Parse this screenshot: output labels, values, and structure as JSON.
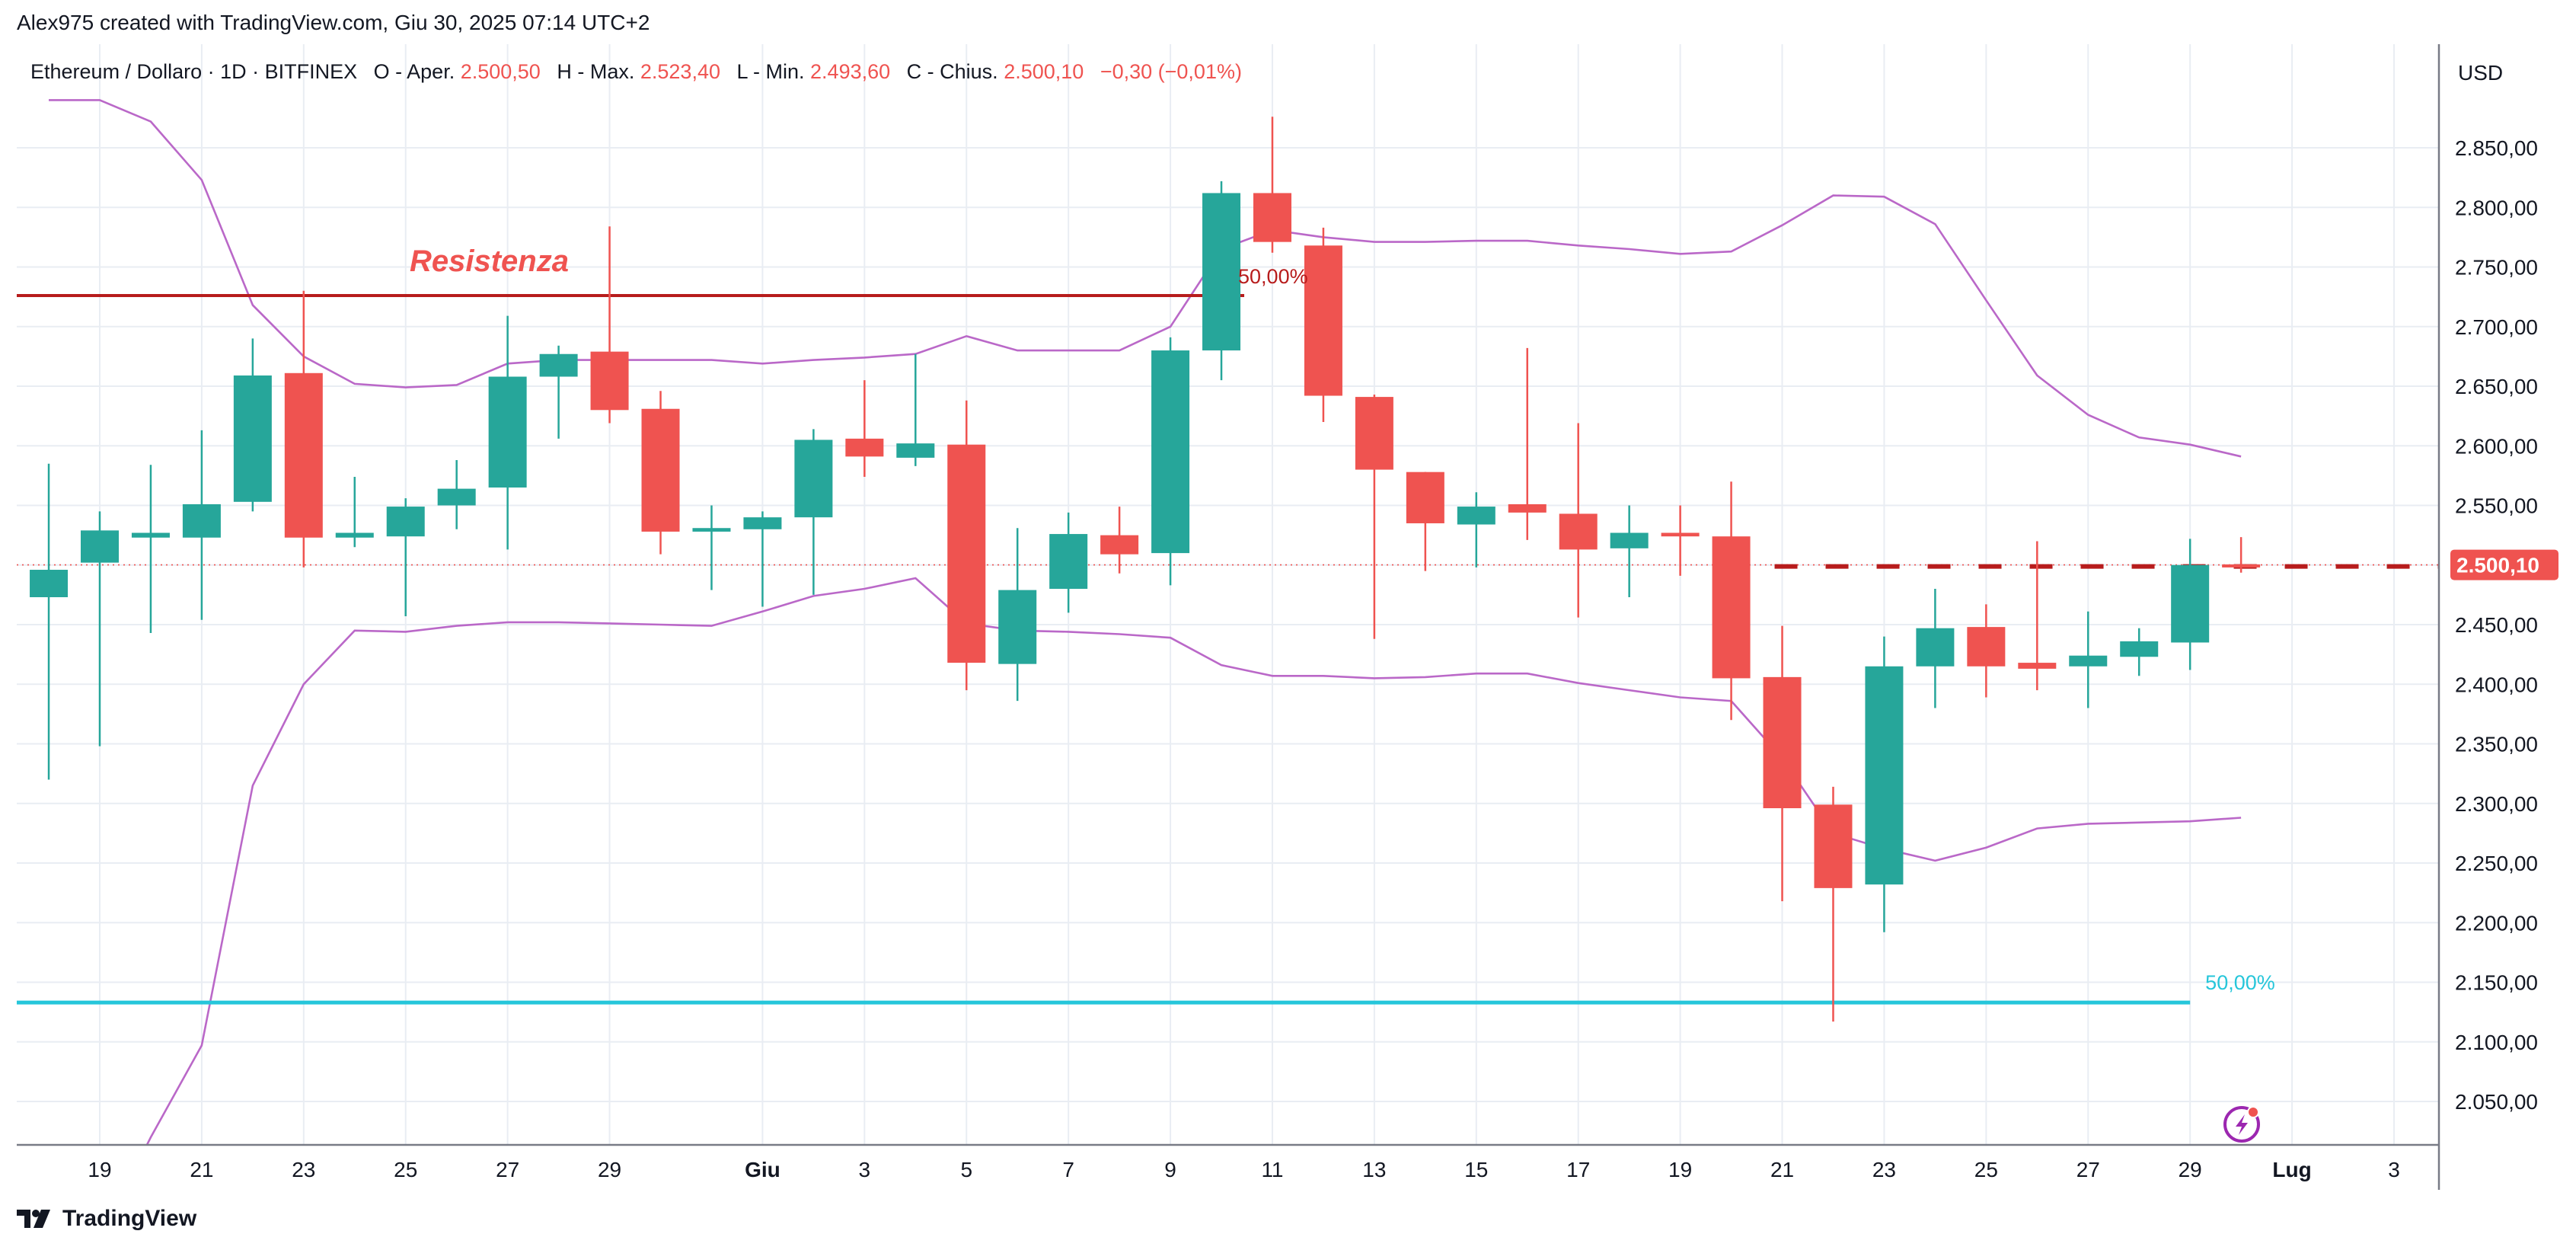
{
  "header": {
    "attribution": "Alex975 created with TradingView.com, Giu 30, 2025 07:14 UTC+2"
  },
  "legend": {
    "symbol": "Ethereum / Dollaro · 1D · BITFINEX",
    "open_label": "O - Aper.",
    "open_value": "2.500,50",
    "high_label": "H - Max.",
    "high_value": "2.523,40",
    "low_label": "L - Min.",
    "low_value": "2.493,60",
    "close_label": "C - Chius.",
    "close_value": "2.500,10",
    "change": "−0,30 (−0,01%)"
  },
  "footer": {
    "brand": "TradingView"
  },
  "colors": {
    "up": "#26a69a",
    "down": "#ef5350",
    "band": "#ba68c8",
    "resistance": "#b71c1c",
    "support": "#26c6da",
    "text": "#131722",
    "grid": "#e9edf3",
    "price_badge": "#ef5350"
  },
  "chart_data": {
    "type": "candlestick",
    "currency_label": "USD",
    "current_price_label": "2.500,10",
    "current_price": 2500.1,
    "y_ticks": [
      {
        "value": 2050,
        "label": "2.050,00"
      },
      {
        "value": 2100,
        "label": "2.100,00"
      },
      {
        "value": 2150,
        "label": "2.150,00"
      },
      {
        "value": 2200,
        "label": "2.200,00"
      },
      {
        "value": 2250,
        "label": "2.250,00"
      },
      {
        "value": 2300,
        "label": "2.300,00"
      },
      {
        "value": 2350,
        "label": "2.350,00"
      },
      {
        "value": 2400,
        "label": "2.400,00"
      },
      {
        "value": 2450,
        "label": "2.450,00"
      },
      {
        "value": 2500,
        "label": "2.500,00"
      },
      {
        "value": 2550,
        "label": "2.550,00"
      },
      {
        "value": 2600,
        "label": "2.600,00"
      },
      {
        "value": 2650,
        "label": "2.650,00"
      },
      {
        "value": 2700,
        "label": "2.700,00"
      },
      {
        "value": 2750,
        "label": "2.750,00"
      },
      {
        "value": 2800,
        "label": "2.800,00"
      },
      {
        "value": 2850,
        "label": "2.850,00"
      }
    ],
    "x_ticks": [
      {
        "date": "2025-05-19",
        "label": "19",
        "bold": false
      },
      {
        "date": "2025-05-21",
        "label": "21",
        "bold": false
      },
      {
        "date": "2025-05-23",
        "label": "23",
        "bold": false
      },
      {
        "date": "2025-05-25",
        "label": "25",
        "bold": false
      },
      {
        "date": "2025-05-27",
        "label": "27",
        "bold": false
      },
      {
        "date": "2025-05-29",
        "label": "29",
        "bold": false
      },
      {
        "date": "2025-06-01",
        "label": "Giu",
        "bold": true
      },
      {
        "date": "2025-06-03",
        "label": "3",
        "bold": false
      },
      {
        "date": "2025-06-05",
        "label": "5",
        "bold": false
      },
      {
        "date": "2025-06-07",
        "label": "7",
        "bold": false
      },
      {
        "date": "2025-06-09",
        "label": "9",
        "bold": false
      },
      {
        "date": "2025-06-11",
        "label": "11",
        "bold": false
      },
      {
        "date": "2025-06-13",
        "label": "13",
        "bold": false
      },
      {
        "date": "2025-06-15",
        "label": "15",
        "bold": false
      },
      {
        "date": "2025-06-17",
        "label": "17",
        "bold": false
      },
      {
        "date": "2025-06-19",
        "label": "19",
        "bold": false
      },
      {
        "date": "2025-06-21",
        "label": "21",
        "bold": false
      },
      {
        "date": "2025-06-23",
        "label": "23",
        "bold": false
      },
      {
        "date": "2025-06-25",
        "label": "25",
        "bold": false
      },
      {
        "date": "2025-06-27",
        "label": "27",
        "bold": false
      },
      {
        "date": "2025-06-29",
        "label": "29",
        "bold": false
      },
      {
        "date": "2025-07-01",
        "label": "Lug",
        "bold": true
      },
      {
        "date": "2025-07-03",
        "label": "3",
        "bold": false
      }
    ],
    "candles": [
      {
        "date": "2025-05-18",
        "open": 2473,
        "high": 2585,
        "low": 2320,
        "close": 2496
      },
      {
        "date": "2025-05-19",
        "open": 2502,
        "high": 2545,
        "low": 2348,
        "close": 2529
      },
      {
        "date": "2025-05-20",
        "open": 2523,
        "high": 2584,
        "low": 2443,
        "close": 2527
      },
      {
        "date": "2025-05-21",
        "open": 2523,
        "high": 2613,
        "low": 2454,
        "close": 2551
      },
      {
        "date": "2025-05-22",
        "open": 2553,
        "high": 2690,
        "low": 2545,
        "close": 2659
      },
      {
        "date": "2025-05-23",
        "open": 2661,
        "high": 2730,
        "low": 2498,
        "close": 2523
      },
      {
        "date": "2025-05-24",
        "open": 2523,
        "high": 2574,
        "low": 2515,
        "close": 2527
      },
      {
        "date": "2025-05-25",
        "open": 2524,
        "high": 2556,
        "low": 2457,
        "close": 2549
      },
      {
        "date": "2025-05-26",
        "open": 2550,
        "high": 2588,
        "low": 2530,
        "close": 2564
      },
      {
        "date": "2025-05-27",
        "open": 2565,
        "high": 2709,
        "low": 2513,
        "close": 2658
      },
      {
        "date": "2025-05-28",
        "open": 2658,
        "high": 2684,
        "low": 2606,
        "close": 2677
      },
      {
        "date": "2025-05-29",
        "open": 2679,
        "high": 2784,
        "low": 2619,
        "close": 2630
      },
      {
        "date": "2025-05-30",
        "open": 2631,
        "high": 2646,
        "low": 2509,
        "close": 2528
      },
      {
        "date": "2025-05-31",
        "open": 2528,
        "high": 2550,
        "low": 2479,
        "close": 2531
      },
      {
        "date": "2025-06-01",
        "open": 2530,
        "high": 2545,
        "low": 2465,
        "close": 2540
      },
      {
        "date": "2025-06-02",
        "open": 2540,
        "high": 2614,
        "low": 2475,
        "close": 2605
      },
      {
        "date": "2025-06-03",
        "open": 2606,
        "high": 2655,
        "low": 2574,
        "close": 2591
      },
      {
        "date": "2025-06-04",
        "open": 2590,
        "high": 2677,
        "low": 2583,
        "close": 2602
      },
      {
        "date": "2025-06-05",
        "open": 2601,
        "high": 2638,
        "low": 2395,
        "close": 2418
      },
      {
        "date": "2025-06-06",
        "open": 2417,
        "high": 2531,
        "low": 2386,
        "close": 2479
      },
      {
        "date": "2025-06-07",
        "open": 2480,
        "high": 2544,
        "low": 2460,
        "close": 2526
      },
      {
        "date": "2025-06-08",
        "open": 2525,
        "high": 2549,
        "low": 2493,
        "close": 2509
      },
      {
        "date": "2025-06-09",
        "open": 2510,
        "high": 2691,
        "low": 2483,
        "close": 2680
      },
      {
        "date": "2025-06-10",
        "open": 2680,
        "high": 2822,
        "low": 2655,
        "close": 2812
      },
      {
        "date": "2025-06-11",
        "open": 2812,
        "high": 2876,
        "low": 2762,
        "close": 2771
      },
      {
        "date": "2025-06-12",
        "open": 2768,
        "high": 2783,
        "low": 2620,
        "close": 2642
      },
      {
        "date": "2025-06-13",
        "open": 2641,
        "high": 2643,
        "low": 2438,
        "close": 2580
      },
      {
        "date": "2025-06-14",
        "open": 2578,
        "high": 2578,
        "low": 2495,
        "close": 2535
      },
      {
        "date": "2025-06-15",
        "open": 2534,
        "high": 2561,
        "low": 2498,
        "close": 2549
      },
      {
        "date": "2025-06-16",
        "open": 2551,
        "high": 2682,
        "low": 2521,
        "close": 2544
      },
      {
        "date": "2025-06-17",
        "open": 2543,
        "high": 2619,
        "low": 2456,
        "close": 2513
      },
      {
        "date": "2025-06-18",
        "open": 2514,
        "high": 2550,
        "low": 2473,
        "close": 2527
      },
      {
        "date": "2025-06-19",
        "open": 2527,
        "high": 2550,
        "low": 2491,
        "close": 2524
      },
      {
        "date": "2025-06-20",
        "open": 2524,
        "high": 2570,
        "low": 2370,
        "close": 2405
      },
      {
        "date": "2025-06-21",
        "open": 2406,
        "high": 2449,
        "low": 2218,
        "close": 2296
      },
      {
        "date": "2025-06-22",
        "open": 2299,
        "high": 2314,
        "low": 2117,
        "close": 2229
      },
      {
        "date": "2025-06-23",
        "open": 2232,
        "high": 2440,
        "low": 2192,
        "close": 2415
      },
      {
        "date": "2025-06-24",
        "open": 2415,
        "high": 2480,
        "low": 2380,
        "close": 2447
      },
      {
        "date": "2025-06-25",
        "open": 2448,
        "high": 2467,
        "low": 2389,
        "close": 2415
      },
      {
        "date": "2025-06-26",
        "open": 2418,
        "high": 2520,
        "low": 2395,
        "close": 2413
      },
      {
        "date": "2025-06-27",
        "open": 2415,
        "high": 2461,
        "low": 2380,
        "close": 2424
      },
      {
        "date": "2025-06-28",
        "open": 2423,
        "high": 2447,
        "low": 2407,
        "close": 2436
      },
      {
        "date": "2025-06-29",
        "open": 2435,
        "high": 2522,
        "low": 2412,
        "close": 2500
      },
      {
        "date": "2025-06-30",
        "open": 2500.5,
        "high": 2523.4,
        "low": 2493.6,
        "close": 2500.1
      }
    ],
    "upper_band": [
      {
        "date": "2025-05-18",
        "value": 2890
      },
      {
        "date": "2025-05-19",
        "value": 2890
      },
      {
        "date": "2025-05-20",
        "value": 2872
      },
      {
        "date": "2025-05-21",
        "value": 2823
      },
      {
        "date": "2025-05-22",
        "value": 2718
      },
      {
        "date": "2025-05-23",
        "value": 2675
      },
      {
        "date": "2025-05-24",
        "value": 2652
      },
      {
        "date": "2025-05-25",
        "value": 2649
      },
      {
        "date": "2025-05-26",
        "value": 2651
      },
      {
        "date": "2025-05-27",
        "value": 2669
      },
      {
        "date": "2025-05-28",
        "value": 2672
      },
      {
        "date": "2025-05-29",
        "value": 2672
      },
      {
        "date": "2025-05-30",
        "value": 2672
      },
      {
        "date": "2025-05-31",
        "value": 2672
      },
      {
        "date": "2025-06-01",
        "value": 2669
      },
      {
        "date": "2025-06-02",
        "value": 2672
      },
      {
        "date": "2025-06-03",
        "value": 2674
      },
      {
        "date": "2025-06-04",
        "value": 2677
      },
      {
        "date": "2025-06-05",
        "value": 2692
      },
      {
        "date": "2025-06-06",
        "value": 2680
      },
      {
        "date": "2025-06-07",
        "value": 2680
      },
      {
        "date": "2025-06-08",
        "value": 2680
      },
      {
        "date": "2025-06-09",
        "value": 2700
      },
      {
        "date": "2025-06-10",
        "value": 2765
      },
      {
        "date": "2025-06-11",
        "value": 2781
      },
      {
        "date": "2025-06-12",
        "value": 2775
      },
      {
        "date": "2025-06-13",
        "value": 2771
      },
      {
        "date": "2025-06-14",
        "value": 2771
      },
      {
        "date": "2025-06-15",
        "value": 2772
      },
      {
        "date": "2025-06-16",
        "value": 2772
      },
      {
        "date": "2025-06-17",
        "value": 2768
      },
      {
        "date": "2025-06-18",
        "value": 2765
      },
      {
        "date": "2025-06-19",
        "value": 2761
      },
      {
        "date": "2025-06-20",
        "value": 2763
      },
      {
        "date": "2025-06-21",
        "value": 2785
      },
      {
        "date": "2025-06-22",
        "value": 2810
      },
      {
        "date": "2025-06-23",
        "value": 2809
      },
      {
        "date": "2025-06-24",
        "value": 2786
      },
      {
        "date": "2025-06-25",
        "value": 2722
      },
      {
        "date": "2025-06-26",
        "value": 2659
      },
      {
        "date": "2025-06-27",
        "value": 2626
      },
      {
        "date": "2025-06-28",
        "value": 2607
      },
      {
        "date": "2025-06-29",
        "value": 2601
      },
      {
        "date": "2025-06-30",
        "value": 2591
      }
    ],
    "lower_band": [
      {
        "date": "2025-05-19",
        "value": 1935
      },
      {
        "date": "2025-05-20",
        "value": 2020
      },
      {
        "date": "2025-05-21",
        "value": 2097
      },
      {
        "date": "2025-05-22",
        "value": 2315
      },
      {
        "date": "2025-05-23",
        "value": 2400
      },
      {
        "date": "2025-05-24",
        "value": 2445
      },
      {
        "date": "2025-05-25",
        "value": 2444
      },
      {
        "date": "2025-05-26",
        "value": 2449
      },
      {
        "date": "2025-05-27",
        "value": 2452
      },
      {
        "date": "2025-05-28",
        "value": 2452
      },
      {
        "date": "2025-05-29",
        "value": 2451
      },
      {
        "date": "2025-05-30",
        "value": 2450
      },
      {
        "date": "2025-05-31",
        "value": 2449
      },
      {
        "date": "2025-06-01",
        "value": 2461
      },
      {
        "date": "2025-06-02",
        "value": 2474
      },
      {
        "date": "2025-06-03",
        "value": 2480
      },
      {
        "date": "2025-06-04",
        "value": 2489
      },
      {
        "date": "2025-06-05",
        "value": 2451
      },
      {
        "date": "2025-06-06",
        "value": 2445
      },
      {
        "date": "2025-06-07",
        "value": 2444
      },
      {
        "date": "2025-06-08",
        "value": 2442
      },
      {
        "date": "2025-06-09",
        "value": 2439
      },
      {
        "date": "2025-06-10",
        "value": 2416
      },
      {
        "date": "2025-06-11",
        "value": 2407
      },
      {
        "date": "2025-06-12",
        "value": 2407
      },
      {
        "date": "2025-06-13",
        "value": 2405
      },
      {
        "date": "2025-06-14",
        "value": 2406
      },
      {
        "date": "2025-06-15",
        "value": 2409
      },
      {
        "date": "2025-06-16",
        "value": 2409
      },
      {
        "date": "2025-06-17",
        "value": 2401
      },
      {
        "date": "2025-06-18",
        "value": 2395
      },
      {
        "date": "2025-06-19",
        "value": 2389
      },
      {
        "date": "2025-06-20",
        "value": 2386
      },
      {
        "date": "2025-06-21",
        "value": 2338
      },
      {
        "date": "2025-06-22",
        "value": 2275
      },
      {
        "date": "2025-06-23",
        "value": 2262
      },
      {
        "date": "2025-06-24",
        "value": 2252
      },
      {
        "date": "2025-06-25",
        "value": 2263
      },
      {
        "date": "2025-06-26",
        "value": 2279
      },
      {
        "date": "2025-06-27",
        "value": 2283
      },
      {
        "date": "2025-06-28",
        "value": 2284
      },
      {
        "date": "2025-06-29",
        "value": 2285
      },
      {
        "date": "2025-06-30",
        "value": 2288
      }
    ],
    "resistance": {
      "label": "Resistenza",
      "value": 2726,
      "start_date": "2025-05-18",
      "end_date": "2025-06-10",
      "pct_label": "50,00%"
    },
    "support": {
      "value": 2133,
      "start_date": "2025-05-18",
      "end_date": "2025-06-29",
      "pct_label": "50,00%"
    },
    "current_price_dashed_start": "2025-06-21"
  }
}
